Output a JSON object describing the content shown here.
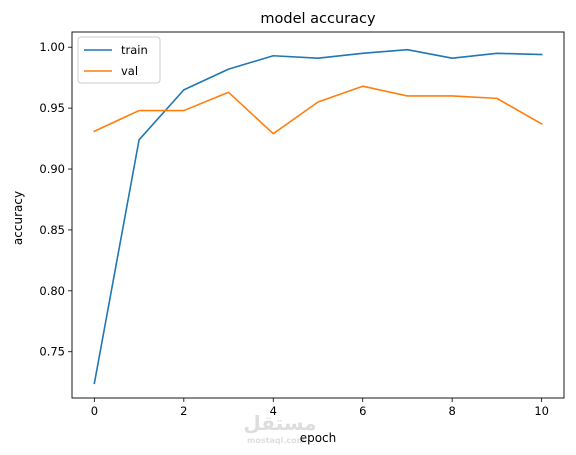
{
  "chart_data": {
    "type": "line",
    "title": "model accuracy",
    "xlabel": "epoch",
    "ylabel": "accuracy",
    "xlim": [
      -0.5,
      10.5
    ],
    "ylim": [
      0.712,
      1.0125
    ],
    "xticks": [
      0,
      2,
      4,
      6,
      8,
      10
    ],
    "yticks": [
      0.75,
      0.8,
      0.85,
      0.9,
      0.95,
      1.0
    ],
    "ytick_labels": [
      "0.75",
      "0.80",
      "0.85",
      "0.90",
      "0.95",
      "1.00"
    ],
    "grid": false,
    "legend_position": "top-left",
    "x": [
      0,
      1,
      2,
      3,
      4,
      5,
      6,
      7,
      8,
      9,
      10
    ],
    "series": [
      {
        "name": "train",
        "color": "#1f77b4",
        "values": [
          0.724,
          0.924,
          0.965,
          0.982,
          0.993,
          0.991,
          0.995,
          0.998,
          0.991,
          0.995,
          0.994
        ]
      },
      {
        "name": "val",
        "color": "#ff7f0e",
        "values": [
          0.931,
          0.948,
          0.948,
          0.963,
          0.929,
          0.955,
          0.968,
          0.96,
          0.96,
          0.958,
          0.937
        ]
      }
    ]
  },
  "watermark": {
    "text": "مستقل",
    "subtext": "mostaql.com"
  }
}
